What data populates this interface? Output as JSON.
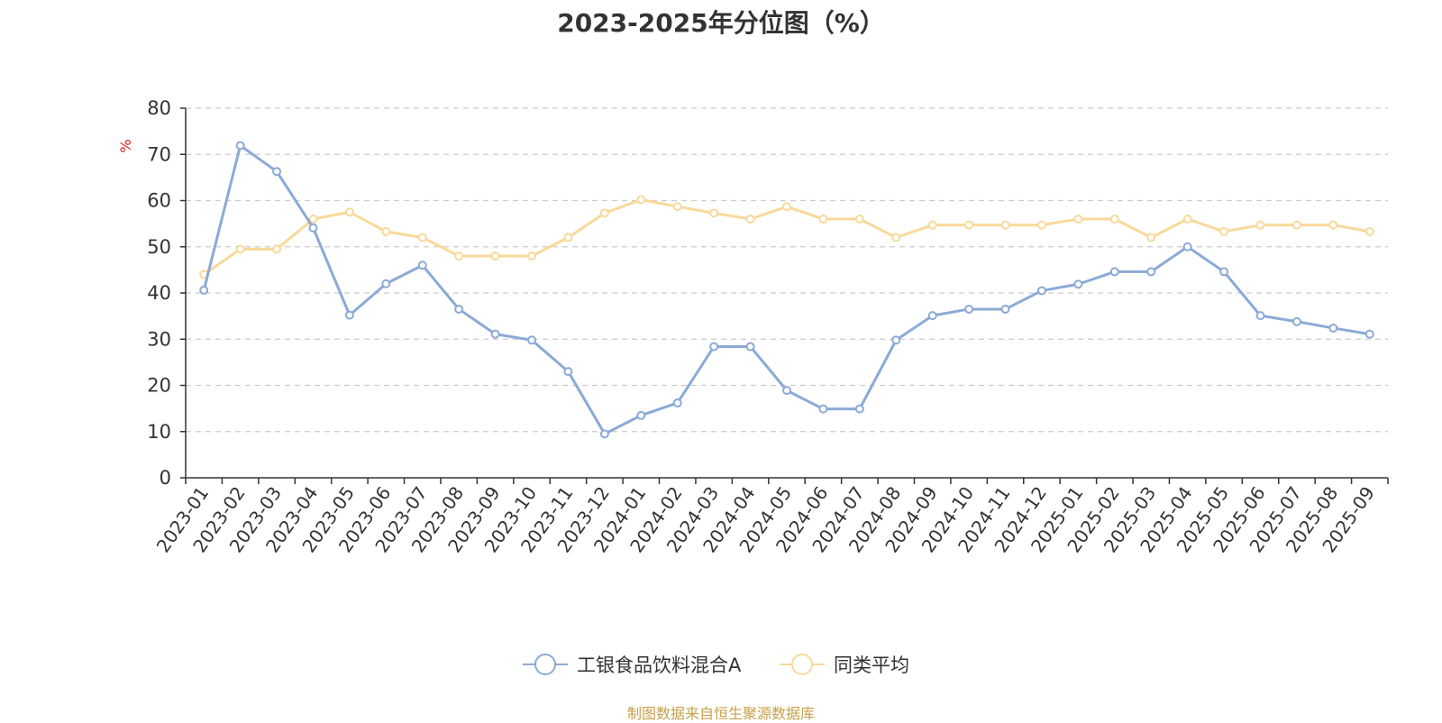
{
  "chart_data": {
    "type": "line",
    "title": "2023-2025年分位图（%）",
    "ylabel": "%",
    "xlabel": "",
    "ylim": [
      0,
      80
    ],
    "yticks": [
      0,
      10,
      20,
      30,
      40,
      50,
      60,
      70,
      80
    ],
    "grid": true,
    "legend_position": "bottom-center",
    "categories": [
      "2023-01",
      "2023-02",
      "2023-03",
      "2023-04",
      "2023-05",
      "2023-06",
      "2023-07",
      "2023-08",
      "2023-09",
      "2023-10",
      "2023-11",
      "2023-12",
      "2024-01",
      "2024-02",
      "2024-03",
      "2024-04",
      "2024-05",
      "2024-06",
      "2024-07",
      "2024-08",
      "2024-09",
      "2024-10",
      "2024-11",
      "2024-12",
      "2025-01",
      "2025-02",
      "2025-03",
      "2025-04",
      "2025-05",
      "2025-06",
      "2025-07",
      "2025-08",
      "2025-09"
    ],
    "series": [
      {
        "name": "工银食品饮料混合A",
        "color": "#8baad6",
        "values": [
          40.6,
          71.9,
          66.3,
          54.1,
          35.2,
          42.0,
          46.0,
          36.5,
          31.1,
          29.8,
          23.0,
          9.5,
          13.5,
          16.2,
          28.4,
          28.4,
          18.9,
          14.9,
          14.9,
          29.8,
          35.1,
          36.5,
          36.5,
          40.5,
          41.9,
          44.6,
          44.6,
          50.0,
          44.6,
          35.1,
          33.8,
          32.4,
          31.1
        ]
      },
      {
        "name": "同类平均",
        "color": "#f9d99a",
        "values": [
          44.0,
          49.5,
          49.5,
          56.0,
          57.5,
          53.3,
          52.0,
          48.0,
          48.0,
          48.0,
          52.0,
          57.3,
          60.2,
          58.7,
          57.3,
          56.0,
          58.7,
          56.0,
          56.0,
          52.0,
          54.7,
          54.7,
          54.7,
          54.7,
          56.0,
          56.0,
          52.0,
          56.0,
          53.3,
          54.7,
          54.7,
          54.7,
          53.3
        ]
      }
    ]
  },
  "footer": {
    "source": "制图数据来自恒生聚源数据库"
  }
}
